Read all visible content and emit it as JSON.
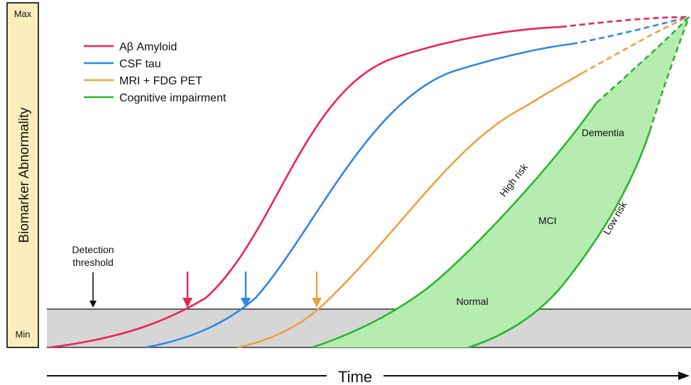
{
  "chart_data": {
    "type": "line",
    "title": "",
    "xlabel": "Time",
    "ylabel": "Biomarker Abnormality",
    "y_ticks": {
      "max": "Max",
      "min": "Min"
    },
    "series": [
      {
        "name": "Aβ Amyloid",
        "color": "#e8245a"
      },
      {
        "name": "CSF tau",
        "color": "#2f86e8"
      },
      {
        "name": "MRI + FDG PET",
        "color": "#f0a040"
      },
      {
        "name": "Cognitive impairment",
        "color": "#2bb52b"
      }
    ],
    "annotations": {
      "detection": "Detection threshold",
      "normal": "Normal",
      "mci": "MCI",
      "dementia": "Dementia",
      "high_risk": "High risk",
      "low_risk": "Low risk"
    },
    "colors": {
      "threshold_band": "#d6d6d6",
      "axis_panel": "#fbeebc",
      "fill_green": "#b6ecb0"
    }
  }
}
